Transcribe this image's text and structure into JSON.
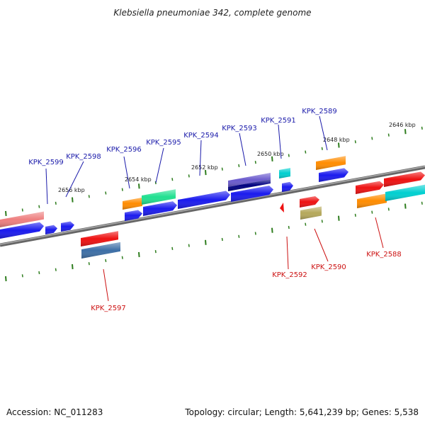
{
  "title": "Klebsiella pneumoniae 342, complete genome",
  "footer": {
    "accession": "Accession: NC_011283",
    "summary": "Topology: circular; Length: 5,641,239 bp; Genes: 5,538"
  },
  "colors": {
    "backbone": "#777777",
    "ticks": "#2e7d1e",
    "upper_label": "#1a1aaa",
    "lower_label": "#cc1111"
  },
  "kbp_labels": [
    "2656 kbp",
    "2654 kbp",
    "2652 kbp",
    "2650 kbp",
    "2648 kbp",
    "2646 kbp"
  ],
  "upper_labels": [
    "KPK_2599",
    "KPK_2598",
    "KPK_2596",
    "KPK_2595",
    "KPK_2594",
    "KPK_2593",
    "KPK_2591",
    "KPK_2589"
  ],
  "lower_labels": [
    "KPK_2597",
    "KPK_2592",
    "KPK_2590",
    "KPK_2588"
  ]
}
